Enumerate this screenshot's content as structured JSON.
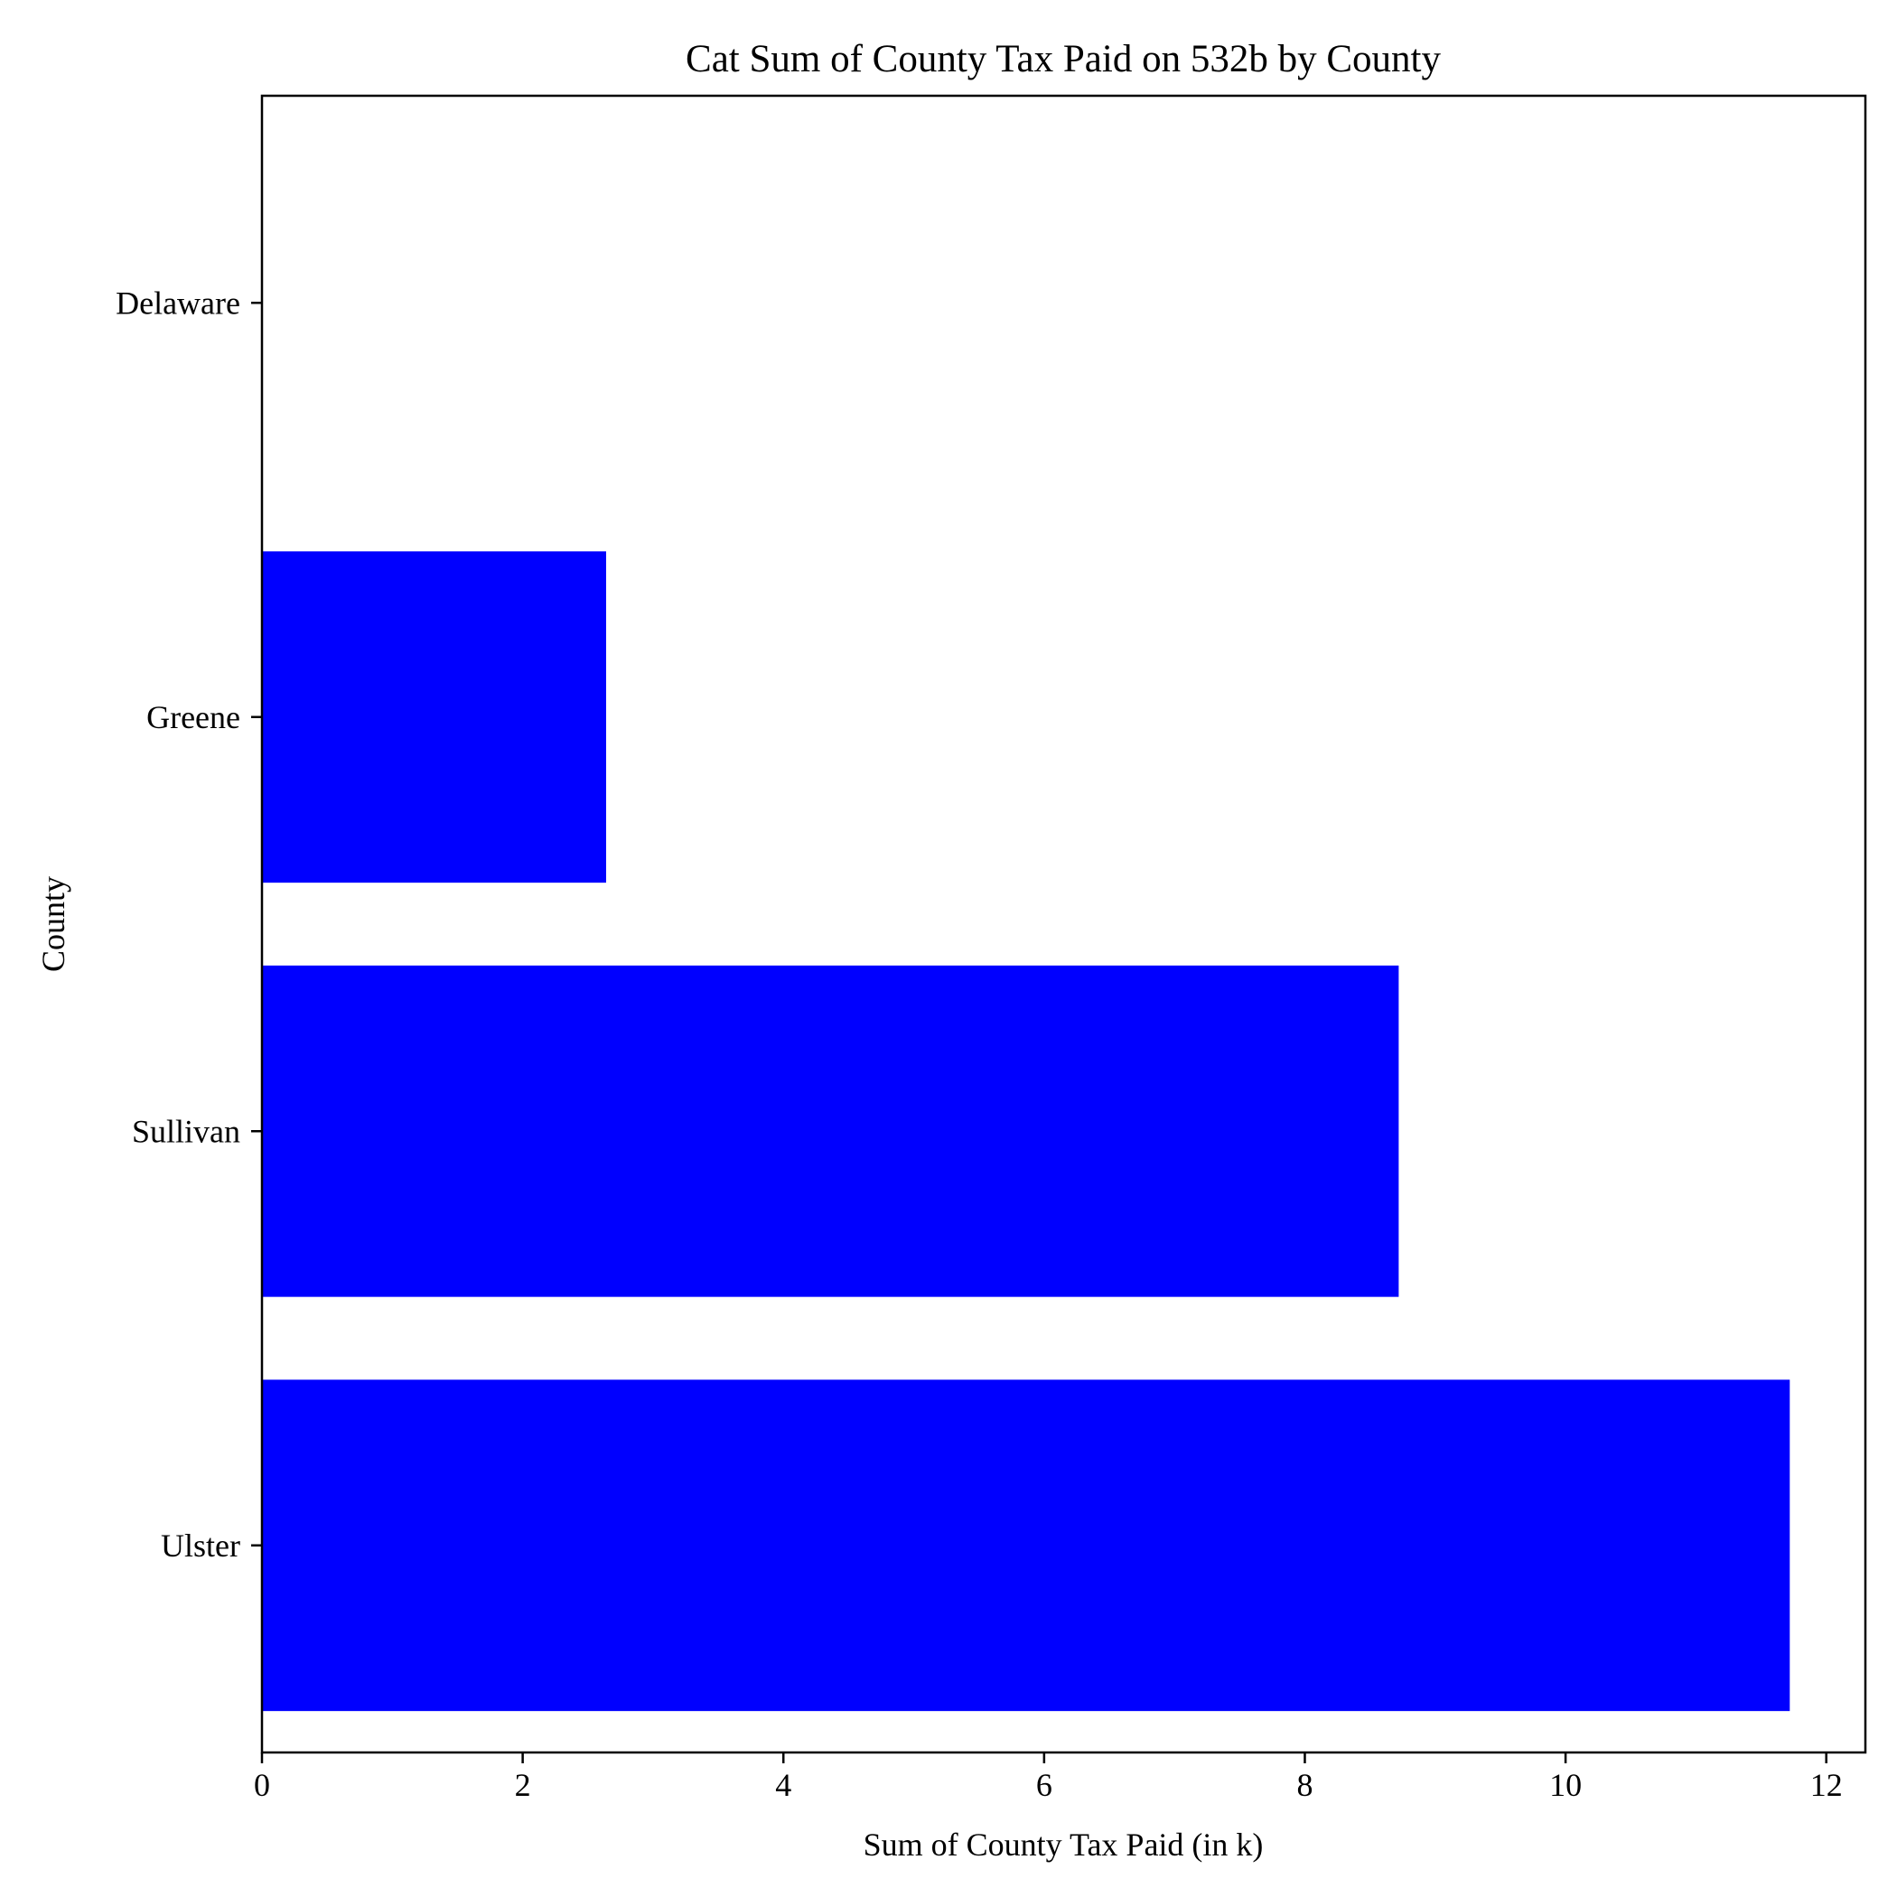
{
  "chart_data": {
    "type": "bar",
    "orientation": "horizontal",
    "title": "Cat Sum of County Tax Paid on 532b by County",
    "xlabel": "Sum of County Tax Paid (in k)",
    "ylabel": "County",
    "categories": [
      "Ulster",
      "Sullivan",
      "Greene",
      "Delaware"
    ],
    "values": [
      11.72,
      8.72,
      2.64,
      0.0
    ],
    "xlim": [
      0,
      12.3
    ],
    "xticks": [
      0,
      2,
      4,
      6,
      8,
      10,
      12
    ],
    "grid": false,
    "bar_color": "#0000ff"
  }
}
